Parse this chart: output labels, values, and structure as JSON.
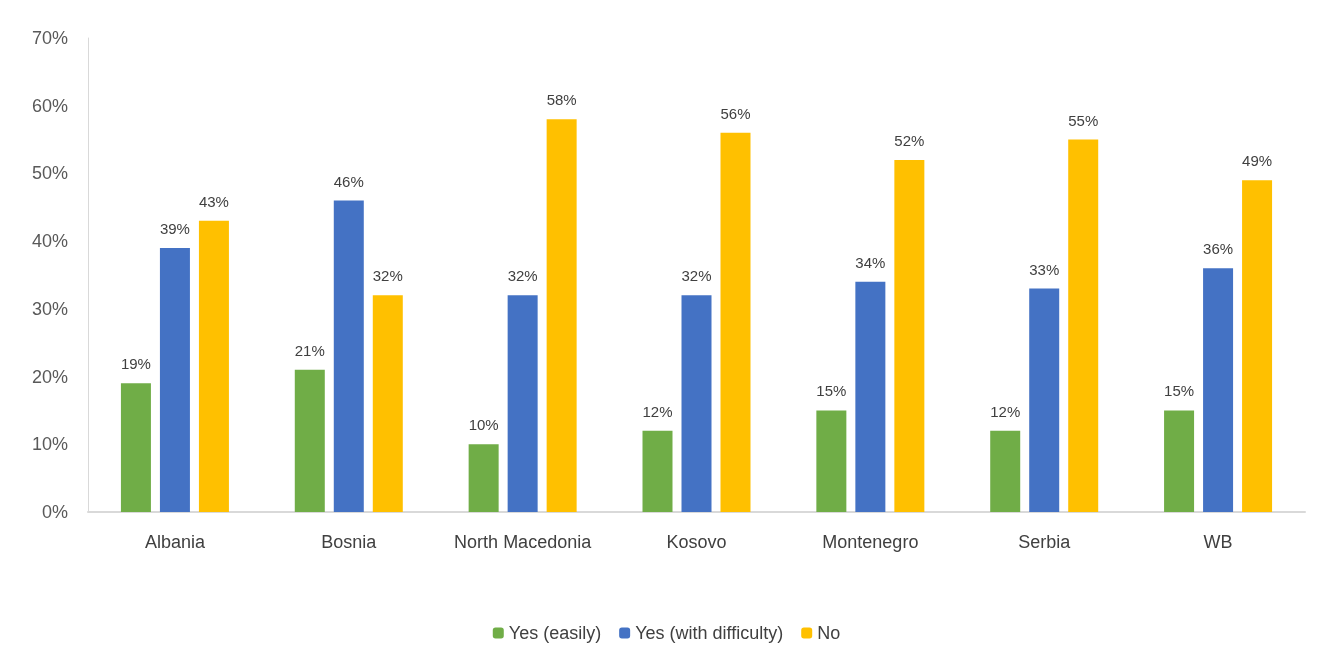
{
  "chart_data": {
    "type": "bar",
    "categories": [
      "Albania",
      "Bosnia",
      "North Macedonia",
      "Kosovo",
      "Montenegro",
      "Serbia",
      "WB"
    ],
    "series": [
      {
        "name": "Yes (easily)",
        "color": "#70ad47",
        "values": [
          19,
          21,
          10,
          12,
          15,
          12,
          15
        ],
        "value_labels": [
          "19%",
          "21%",
          "10%",
          "12%",
          "15%",
          "12%",
          "15%"
        ]
      },
      {
        "name": "Yes (with difficulty)",
        "color": "#4472c4",
        "values": [
          39,
          46,
          32,
          32,
          34,
          33,
          36
        ],
        "value_labels": [
          "39%",
          "46%",
          "32%",
          "32%",
          "34%",
          "33%",
          "36%"
        ]
      },
      {
        "name": "No",
        "color": "#ffc000",
        "values": [
          43,
          32,
          58,
          56,
          52,
          55,
          49
        ],
        "value_labels": [
          "43%",
          "32%",
          "58%",
          "56%",
          "52%",
          "55%",
          "49%"
        ]
      }
    ],
    "ylim": [
      0,
      70
    ],
    "yticks": [
      {
        "value": 0,
        "label": "0%"
      },
      {
        "value": 10,
        "label": "10%"
      },
      {
        "value": 20,
        "label": "20%"
      },
      {
        "value": 30,
        "label": "30%"
      },
      {
        "value": 40,
        "label": "40%"
      },
      {
        "value": 50,
        "label": "50%"
      },
      {
        "value": 60,
        "label": "60%"
      },
      {
        "value": 70,
        "label": "70%"
      }
    ],
    "grid": false,
    "legend": "bottom"
  }
}
